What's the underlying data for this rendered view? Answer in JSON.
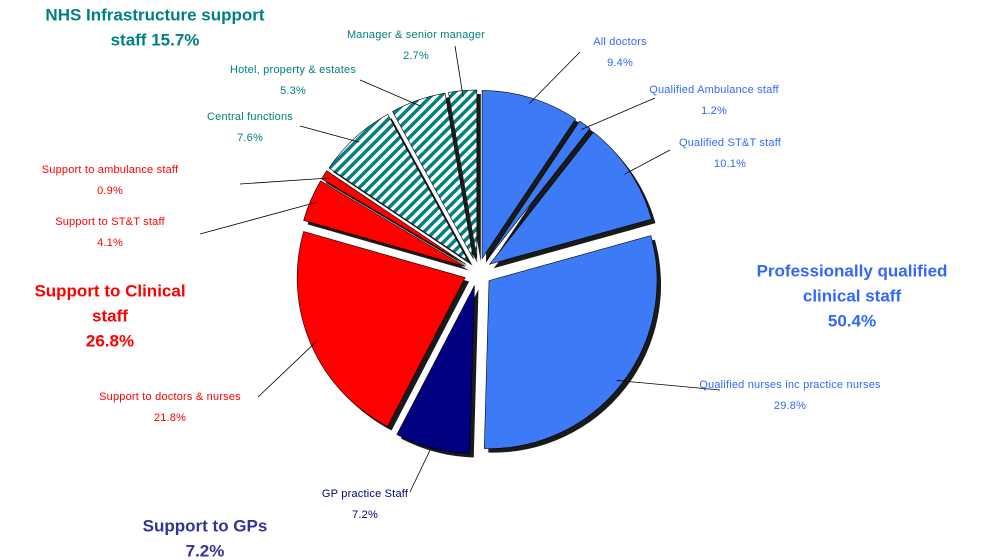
{
  "chart_data": {
    "type": "pie",
    "categories": [
      "All doctors",
      "Qualified Ambulance staff",
      "Qualified ST&T staff",
      "Qualified nurses inc practice nurses",
      "GP practice Staff",
      "Support to doctors & nurses",
      "Support to ST&T staff",
      "Support to ambulance staff",
      "Central functions",
      "Hotel, property & estates",
      "Manager & senior manager"
    ],
    "values": [
      9.4,
      1.2,
      10.1,
      29.8,
      7.2,
      21.8,
      4.1,
      0.9,
      7.6,
      5.3,
      2.7
    ],
    "value_labels": [
      "9.4%",
      "1.2%",
      "10.1%",
      "29.8%",
      "7.2%",
      "21.8%",
      "4.1%",
      "0.9%",
      "7.6%",
      "5.3%",
      "2.7%"
    ],
    "colors": [
      "#3d7af5",
      "#3d7af5",
      "#3d7af5",
      "#3d7af5",
      "#000080",
      "#ff0000",
      "#ff0000",
      "#ff0000",
      "#008080",
      "#008080",
      "#008080"
    ],
    "hatch": [
      false,
      false,
      false,
      false,
      false,
      false,
      false,
      false,
      true,
      true,
      true
    ],
    "groups": [
      {
        "lines": [
          "NHS Infrastructure support",
          "staff 15.7%"
        ],
        "color": "#008080"
      },
      {
        "lines": [
          "Professionally qualified",
          "clinical staff",
          "50.4%"
        ],
        "color": "#3366ff"
      },
      {
        "lines": [
          "Support to Clinical",
          "staff",
          "26.8%"
        ],
        "color": "#ff0000"
      },
      {
        "lines": [
          "Support to GPs",
          "7.2%"
        ],
        "color": "#333399"
      }
    ]
  }
}
